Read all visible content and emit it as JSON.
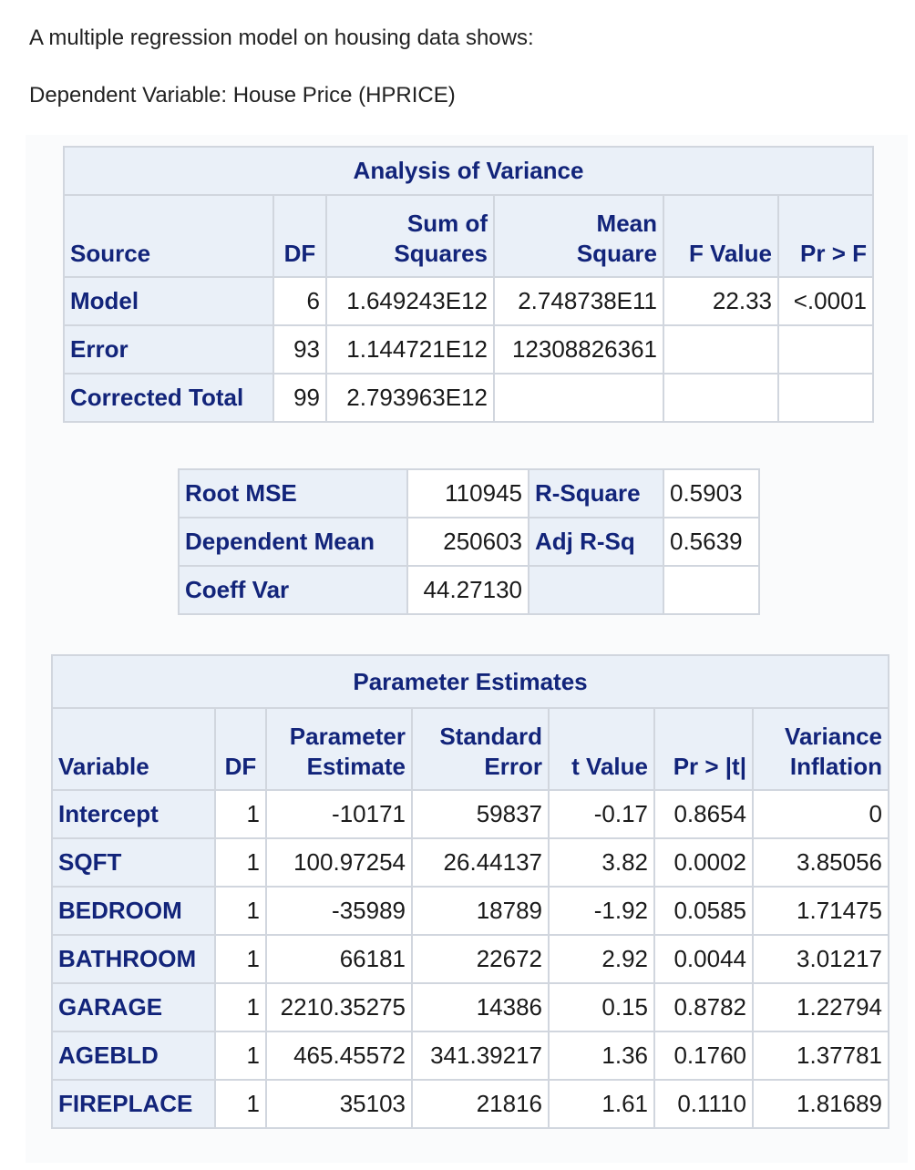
{
  "intro": {
    "line1": "A multiple regression model on housing data shows:",
    "line2": "Dependent Variable: House Price (HPRICE)"
  },
  "anova": {
    "title": "Analysis of Variance",
    "headers": {
      "source": "Source",
      "df": "DF",
      "ss_line1": "Sum of",
      "ss_line2": "Squares",
      "ms_line1": "Mean",
      "ms_line2": "Square",
      "f_value": "F Value",
      "pr_f": "Pr > F"
    },
    "rows": [
      {
        "source": "Model",
        "df": "6",
        "ss": "1.649243E12",
        "ms": "2.748738E11",
        "f": "22.33",
        "p": "<.0001"
      },
      {
        "source": "Error",
        "df": "93",
        "ss": "1.144721E12",
        "ms": "12308826361",
        "f": "",
        "p": ""
      },
      {
        "source": "Corrected Total",
        "df": "99",
        "ss": "2.793963E12",
        "ms": "",
        "f": "",
        "p": ""
      }
    ]
  },
  "fit": {
    "rows": [
      {
        "label1": "Root MSE",
        "value1": "110945",
        "label2": "R-Square",
        "value2": "0.5903"
      },
      {
        "label1": "Dependent Mean",
        "value1": "250603",
        "label2": "Adj R-Sq",
        "value2": "0.5639"
      },
      {
        "label1": "Coeff Var",
        "value1": "44.27130",
        "label2": "",
        "value2": ""
      }
    ]
  },
  "params": {
    "title": "Parameter Estimates",
    "headers": {
      "variable": "Variable",
      "df": "DF",
      "pe_line1": "Parameter",
      "pe_line2": "Estimate",
      "se_line1": "Standard",
      "se_line2": "Error",
      "t_value": "t Value",
      "pr_t": "Pr > |t|",
      "vi_line1": "Variance",
      "vi_line2": "Inflation"
    },
    "rows": [
      {
        "variable": "Intercept",
        "df": "1",
        "estimate": "-10171",
        "se": "59837",
        "t": "-0.17",
        "p": "0.8654",
        "vif": "0"
      },
      {
        "variable": "SQFT",
        "df": "1",
        "estimate": "100.97254",
        "se": "26.44137",
        "t": "3.82",
        "p": "0.0002",
        "vif": "3.85056"
      },
      {
        "variable": "BEDROOM",
        "df": "1",
        "estimate": "-35989",
        "se": "18789",
        "t": "-1.92",
        "p": "0.0585",
        "vif": "1.71475"
      },
      {
        "variable": "BATHROOM",
        "df": "1",
        "estimate": "66181",
        "se": "22672",
        "t": "2.92",
        "p": "0.0044",
        "vif": "3.01217"
      },
      {
        "variable": "GARAGE",
        "df": "1",
        "estimate": "2210.35275",
        "se": "14386",
        "t": "0.15",
        "p": "0.8782",
        "vif": "1.22794"
      },
      {
        "variable": "AGEBLD",
        "df": "1",
        "estimate": "465.45572",
        "se": "341.39217",
        "t": "1.36",
        "p": "0.1760",
        "vif": "1.37781"
      },
      {
        "variable": "FIREPLACE",
        "df": "1",
        "estimate": "35103",
        "se": "21816",
        "t": "1.61",
        "p": "0.1110",
        "vif": "1.81689"
      }
    ]
  }
}
